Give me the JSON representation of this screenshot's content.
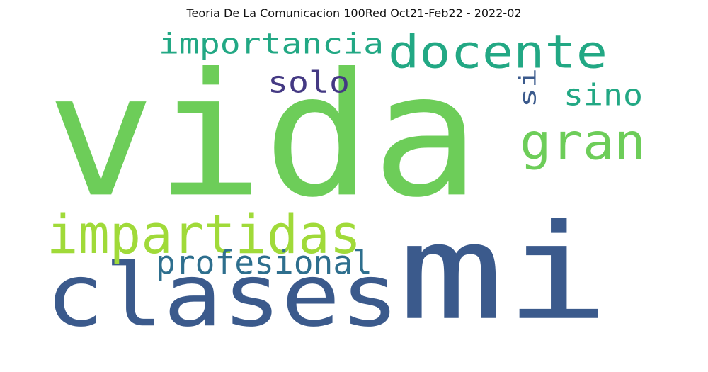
{
  "title": "Teoria De La Comunicacion 100Red Oct21-Feb22 - 2022-02",
  "words": [
    {
      "text": "vida",
      "color": "#6dcd59"
    },
    {
      "text": "mi",
      "color": "#3b5a8c"
    },
    {
      "text": "clases",
      "color": "#3b5a8c"
    },
    {
      "text": "docente",
      "color": "#22a884"
    },
    {
      "text": "importancia",
      "color": "#22a884"
    },
    {
      "text": "gran",
      "color": "#6dcd59"
    },
    {
      "text": "impartidas",
      "color": "#a0da39"
    },
    {
      "text": "profesional",
      "color": "#2e6f8e"
    },
    {
      "text": "solo",
      "color": "#443983"
    },
    {
      "text": "sino",
      "color": "#22a884"
    },
    {
      "text": "si",
      "color": "#3b5a8c"
    }
  ]
}
